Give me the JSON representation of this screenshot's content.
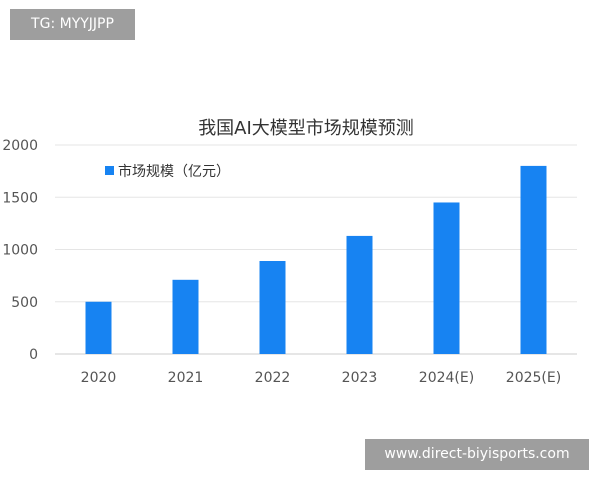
{
  "tag": {
    "text": "TG: MYYJJPP"
  },
  "watermark": {
    "text": "www.direct-biyisports.com"
  },
  "chart_data": {
    "type": "bar",
    "title": "我国AI大模型市场规模预测",
    "categories": [
      "2020",
      "2021",
      "2022",
      "2023",
      "2024(E)",
      "2025(E)"
    ],
    "series": [
      {
        "name": "市场规模（亿元）",
        "values": [
          500,
          710,
          890,
          1130,
          1450,
          1800
        ]
      }
    ],
    "ylim": [
      0,
      2000
    ],
    "yticks": [
      0,
      500,
      1000,
      1500,
      2000
    ],
    "legend": "top-left",
    "grid": true,
    "colors": {
      "bar": "#1783f2",
      "grid": "#e5e5e5"
    }
  }
}
